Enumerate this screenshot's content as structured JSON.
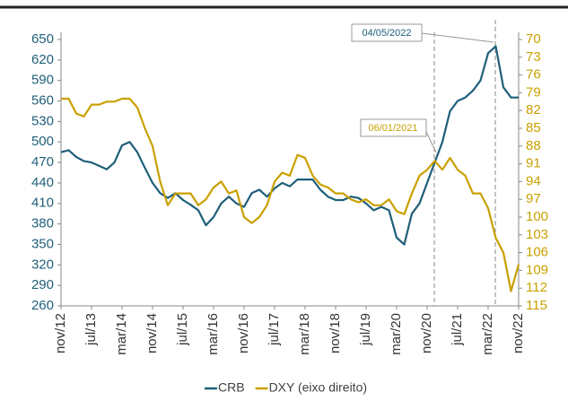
{
  "chart_data": {
    "type": "line",
    "categories": [
      "nov/12",
      null,
      null,
      null,
      "jul/13",
      null,
      null,
      null,
      "mar/14",
      null,
      null,
      null,
      "nov/14",
      null,
      null,
      null,
      "jul/15",
      null,
      null,
      null,
      "mar/16",
      null,
      null,
      null,
      "nov/16",
      null,
      null,
      null,
      "jul/17",
      null,
      null,
      null,
      "mar/18",
      null,
      null,
      null,
      "nov/18",
      null,
      null,
      null,
      "jul/19",
      null,
      null,
      null,
      "mar/20",
      null,
      null,
      null,
      "nov/20",
      null,
      null,
      null,
      "jul/21",
      null,
      null,
      null,
      "mar/22",
      null,
      null,
      null,
      "nov/22"
    ],
    "series": [
      {
        "name": "CRB",
        "color": "#1f5f7a",
        "axis": "y",
        "values": [
          485,
          488,
          478,
          472,
          470,
          465,
          460,
          470,
          495,
          500,
          485,
          462,
          440,
          425,
          418,
          425,
          415,
          408,
          400,
          378,
          390,
          410,
          420,
          410,
          405,
          425,
          430,
          420,
          432,
          440,
          435,
          445,
          445,
          445,
          430,
          420,
          415,
          415,
          420,
          418,
          410,
          400,
          405,
          400,
          360,
          350,
          395,
          410,
          440,
          470,
          500,
          545,
          560,
          565,
          575,
          590,
          630,
          640,
          580,
          565,
          565
        ]
      },
      {
        "name": "DXY (eixo direito)",
        "color": "#c9a000",
        "axis": "y2",
        "values": [
          80,
          80,
          82.5,
          83,
          81,
          81,
          80.5,
          80.5,
          80,
          80,
          81.5,
          85,
          88,
          94,
          98,
          96,
          96,
          96,
          98,
          97,
          95,
          94,
          96,
          95.5,
          100,
          101,
          100,
          98,
          94,
          92.5,
          93,
          89.5,
          90,
          93,
          94.5,
          95,
          96,
          96,
          97,
          97.5,
          97,
          98,
          98,
          97,
          99,
          99.5,
          96,
          93,
          92,
          90.5,
          92,
          90,
          92,
          93,
          96,
          96,
          98.5,
          103.5,
          106,
          112.5,
          108
        ]
      }
    ],
    "ylim": [
      260,
      650
    ],
    "yticks": [
      260,
      290,
      320,
      350,
      380,
      410,
      440,
      470,
      500,
      530,
      560,
      590,
      620,
      650
    ],
    "y2lim": [
      115,
      70
    ],
    "y2ticks": [
      115,
      112,
      109,
      106,
      103,
      100,
      97,
      94,
      91,
      88,
      85,
      82,
      79,
      76,
      73,
      70
    ],
    "annotations": [
      "04/05/2022",
      "06/01/2021"
    ],
    "legend": "bottom"
  }
}
